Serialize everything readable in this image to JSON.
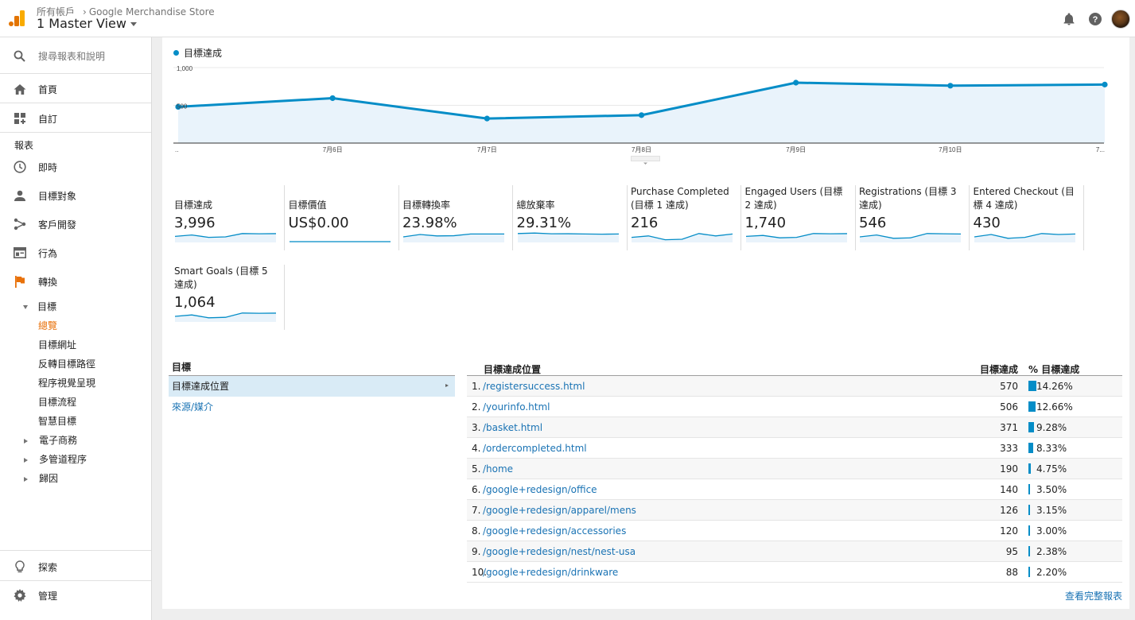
{
  "colors": {
    "accent": "#058dc7",
    "link": "#1a73b4",
    "active_nav": "#e8710a",
    "fill": "#e9f3fb"
  },
  "header": {
    "account": "所有帳戶",
    "property": "Google Merchandise Store",
    "view": "1 Master View",
    "icons": [
      "bell-icon",
      "help-icon",
      "avatar"
    ]
  },
  "sidebar": {
    "search_placeholder": "搜尋報表和說明",
    "home": "首頁",
    "customize": "自訂",
    "reports_heading": "報表",
    "realtime": "即時",
    "audience": "目標對象",
    "acquisition": "客戶開發",
    "behavior": "行為",
    "conversions": "轉換",
    "goals": "目標",
    "overview": "總覽",
    "goal_urls": "目標網址",
    "reverse_path": "反轉目標路徑",
    "funnel_viz": "程序視覺呈現",
    "goal_flow": "目標流程",
    "smart_goals": "智慧目標",
    "ecommerce": "電子商務",
    "multichannel": "多管道程序",
    "attribution": "歸因",
    "discover": "探索",
    "admin": "管理"
  },
  "chart_data": {
    "type": "area",
    "legend": "目標達成",
    "x": [
      "..",
      "7月6日",
      "7月7日",
      "7月8日",
      "7月9日",
      "7月10日",
      "7..."
    ],
    "values": [
      480,
      595,
      325,
      370,
      800,
      760,
      775
    ],
    "yticks": [
      "1,000",
      "500"
    ],
    "ylim": [
      0,
      1000
    ],
    "grid": true
  },
  "tiles": [
    {
      "label": "目標達成",
      "value": "3,996",
      "spark": [
        0.55,
        0.7,
        0.45,
        0.5,
        0.85,
        0.82,
        0.84
      ]
    },
    {
      "label": "目標價值",
      "value": "US$0.00",
      "spark": [
        0,
        0,
        0,
        0,
        0,
        0,
        0
      ]
    },
    {
      "label": "目標轉換率",
      "value": "23.98%",
      "spark": [
        0.5,
        0.75,
        0.6,
        0.62,
        0.8,
        0.8,
        0.8
      ]
    },
    {
      "label": "總放棄率",
      "value": "29.31%",
      "spark": [
        0.85,
        0.9,
        0.82,
        0.83,
        0.8,
        0.78,
        0.8
      ]
    },
    {
      "label": "Purchase Completed (目標 1 達成)",
      "value": "216",
      "spark": [
        0.45,
        0.6,
        0.2,
        0.25,
        0.85,
        0.6,
        0.8
      ]
    },
    {
      "label": "Engaged Users (目標 2 達成)",
      "value": "1,740",
      "spark": [
        0.55,
        0.65,
        0.4,
        0.45,
        0.85,
        0.82,
        0.84
      ]
    },
    {
      "label": "Registrations (目標 3 達成)",
      "value": "546",
      "spark": [
        0.5,
        0.7,
        0.35,
        0.4,
        0.85,
        0.82,
        0.8
      ]
    },
    {
      "label": "Entered Checkout (目標 4 達成)",
      "value": "430",
      "spark": [
        0.5,
        0.75,
        0.35,
        0.45,
        0.85,
        0.75,
        0.8
      ]
    },
    {
      "label": "Smart Goals (目標 5 達成)",
      "value": "1,064",
      "spark": [
        0.5,
        0.65,
        0.35,
        0.4,
        0.85,
        0.82,
        0.84
      ]
    }
  ],
  "goal_nav": {
    "header": "目標",
    "selected": "目標達成位置",
    "other": "來源/媒介"
  },
  "table": {
    "col_location": "目標達成位置",
    "col_completions": "目標達成",
    "col_pct": "% 目標達成",
    "rows": [
      {
        "n": "1.",
        "url": "/registersuccess.html",
        "count": "570",
        "pct": "14.26%",
        "share": 14.26
      },
      {
        "n": "2.",
        "url": "/yourinfo.html",
        "count": "506",
        "pct": "12.66%",
        "share": 12.66
      },
      {
        "n": "3.",
        "url": "/basket.html",
        "count": "371",
        "pct": "9.28%",
        "share": 9.28
      },
      {
        "n": "4.",
        "url": "/ordercompleted.html",
        "count": "333",
        "pct": "8.33%",
        "share": 8.33
      },
      {
        "n": "5.",
        "url": "/home",
        "count": "190",
        "pct": "4.75%",
        "share": 4.75
      },
      {
        "n": "6.",
        "url": "/google+redesign/office",
        "count": "140",
        "pct": "3.50%",
        "share": 3.5
      },
      {
        "n": "7.",
        "url": "/google+redesign/apparel/mens",
        "count": "126",
        "pct": "3.15%",
        "share": 3.15
      },
      {
        "n": "8.",
        "url": "/google+redesign/accessories",
        "count": "120",
        "pct": "3.00%",
        "share": 3.0
      },
      {
        "n": "9.",
        "url": "/google+redesign/nest/nest-usa",
        "count": "95",
        "pct": "2.38%",
        "share": 2.38
      },
      {
        "n": "10.",
        "url": "/google+redesign/drinkware",
        "count": "88",
        "pct": "2.20%",
        "share": 2.2
      }
    ],
    "full_report": "查看完整報表"
  }
}
